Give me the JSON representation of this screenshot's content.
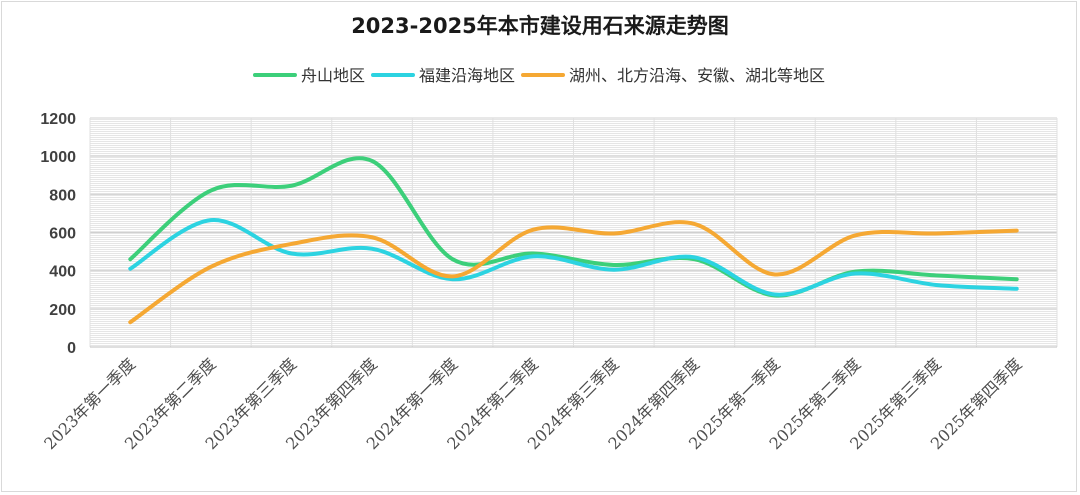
{
  "chart_data": {
    "type": "line",
    "smooth": true,
    "title": "2023-2025年本市建设用石来源走势图",
    "xlabel": "",
    "ylabel": "",
    "ylim": [
      0,
      1200
    ],
    "ytick_step": 200,
    "grid": true,
    "legend_position": "top-center",
    "categories": [
      "2023年第一季度",
      "2023年第二季度",
      "2023年第三季度",
      "2023年第四季度",
      "2024年第一季度",
      "2024年第二季度",
      "2024年第三季度",
      "2024年第四季度",
      "2025年第一季度",
      "2025年第二季度",
      "2025年第三季度",
      "2025年第四季度"
    ],
    "series": [
      {
        "name": "舟山地区",
        "color": "#3ccf7a",
        "values": [
          460,
          820,
          845,
          975,
          460,
          490,
          430,
          460,
          270,
          395,
          375,
          355
        ]
      },
      {
        "name": "福建沿海地区",
        "color": "#2cd3e1",
        "values": [
          410,
          665,
          490,
          515,
          355,
          475,
          405,
          470,
          275,
          385,
          325,
          305
        ]
      },
      {
        "name": "湖州、北方沿海、安徽、湖北等地区",
        "color": "#f5a833",
        "values": [
          130,
          420,
          540,
          575,
          370,
          615,
          595,
          645,
          380,
          585,
          595,
          610
        ]
      }
    ]
  }
}
